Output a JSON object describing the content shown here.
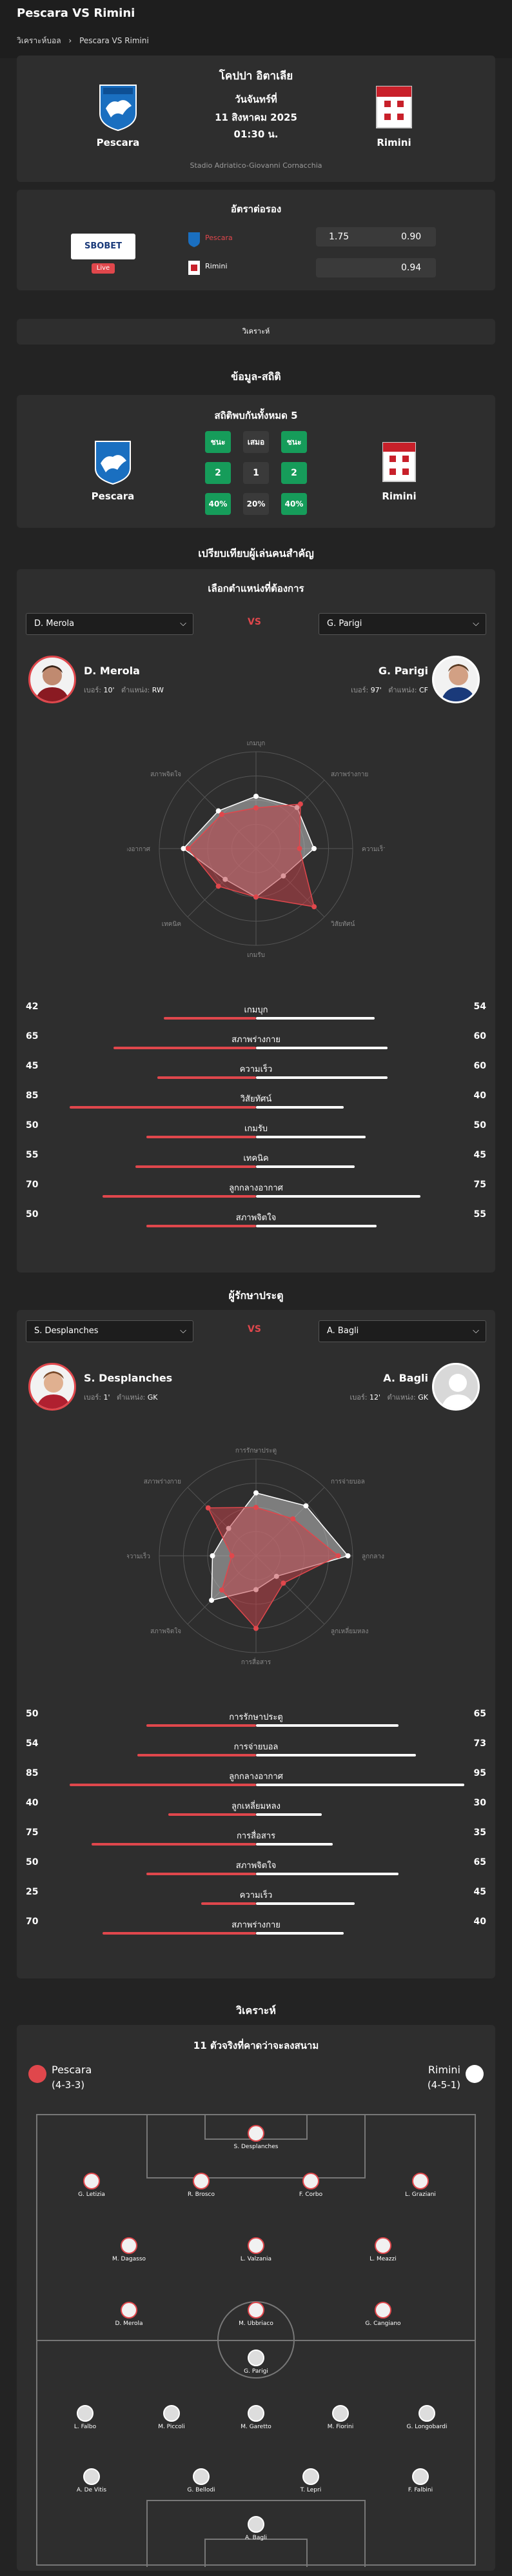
{
  "page": {
    "title": "Pescara VS Rimini",
    "breadcrumb": [
      "วิเคราะห์บอล",
      "›",
      "Pescara VS Rimini"
    ]
  },
  "match": {
    "competition": "โคปปา อิตาเลีย",
    "day": "วันจันทร์ที่",
    "date": "11 สิงหาคม 2025",
    "time": "01:30 น.",
    "venue": "Stadio Adriatico-Giovanni Cornacchia",
    "home": "Pescara",
    "away": "Rimini"
  },
  "odds": {
    "title": "อัตราต่อรอง",
    "bookmaker": "SBOBET",
    "live": "Live",
    "home_name": "Pescara",
    "away_name": "Rimini",
    "home_line": "1.75",
    "home_price": "0.90",
    "away_price": "0.94",
    "analysis_label": "วิเคราะห์"
  },
  "stats": {
    "section_title": "ข้อมูล-สถิติ",
    "h2h_title": "สถิติพบกันทั้งหมด 5",
    "labels": [
      "ชนะ",
      "เสมอ",
      "ชนะ"
    ],
    "counts": [
      "2",
      "1",
      "2"
    ],
    "percents": [
      "40%",
      "20%",
      "40%"
    ],
    "home": "Pescara",
    "away": "Rimini"
  },
  "compare": {
    "section_title": "เปรียบเทียบผู้เล่นคนสำคัญ",
    "forward_title": "เลือกตำแหน่งที่ต้องการ",
    "vs": "VS",
    "fw_home": {
      "select": "D. Merola",
      "name": "D. Merola",
      "number_label": "เบอร์:",
      "number": "10'",
      "pos_label": "ตำแหน่ง:",
      "pos": "RW"
    },
    "fw_away": {
      "select": "G. Parigi",
      "name": "G. Parigi",
      "number_label": "เบอร์:",
      "number": "97'",
      "pos_label": "ตำแหน่ง:",
      "pos": "CF"
    },
    "fw_axes": [
      "เกมบุก",
      "สภาพร่างกาย",
      "ความเร็ว",
      "วิสัยทัศน์",
      "เกมรับ",
      "เทคนิค",
      "ลูกกลางอากาศ",
      "สภาพจิตใจ"
    ],
    "fw_stats": [
      {
        "name": "เกมบุก",
        "home": 42,
        "away": 54
      },
      {
        "name": "สภาพร่างกาย",
        "home": 65,
        "away": 60
      },
      {
        "name": "ความเร็ว",
        "home": 45,
        "away": 60
      },
      {
        "name": "วิสัยทัศน์",
        "home": 85,
        "away": 40
      },
      {
        "name": "เกมรับ",
        "home": 50,
        "away": 50
      },
      {
        "name": "เทคนิค",
        "home": 55,
        "away": 45
      },
      {
        "name": "ลูกกลางอากาศ",
        "home": 70,
        "away": 75
      },
      {
        "name": "สภาพจิตใจ",
        "home": 50,
        "away": 55
      }
    ],
    "gk_title": "ผู้รักษาประตู",
    "gk_home": {
      "select": "S. Desplanches",
      "name": "S. Desplanches",
      "number_label": "เบอร์:",
      "number": "1'",
      "pos_label": "ตำแหน่ง:",
      "pos": "GK"
    },
    "gk_away": {
      "select": "A. Bagli",
      "name": "A. Bagli",
      "number_label": "เบอร์:",
      "number": "12'",
      "pos_label": "ตำแหน่ง:",
      "pos": "GK"
    },
    "gk_axes": [
      "การรักษาประตู",
      "การจ่ายบอล",
      "ลูกกลางอากาศ",
      "ลูกเหลี่ยมหลง",
      "การสื่อสาร",
      "สภาพจิตใจ",
      "ความเร็ว",
      "สภาพร่างกาย"
    ],
    "gk_stats": [
      {
        "name": "การรักษาประตู",
        "home": 50,
        "away": 65
      },
      {
        "name": "การจ่ายบอล",
        "home": 54,
        "away": 73
      },
      {
        "name": "ลูกกลางอากาศ",
        "home": 85,
        "away": 95
      },
      {
        "name": "ลูกเหลี่ยมหลง",
        "home": 40,
        "away": 30
      },
      {
        "name": "การสื่อสาร",
        "home": 75,
        "away": 35
      },
      {
        "name": "สภาพจิตใจ",
        "home": 50,
        "away": 65
      },
      {
        "name": "ความเร็ว",
        "home": 25,
        "away": 45
      },
      {
        "name": "สภาพร่างกาย",
        "home": 70,
        "away": 40
      }
    ]
  },
  "lineup": {
    "section_title": "วิเคราะห์",
    "title": "11 ตัวจริงที่คาดว่าจะลงสนาม",
    "home": "Pescara",
    "home_form": "(4-3-3)",
    "away": "Rimini",
    "away_form": "(4-5-1)",
    "home_players": [
      "S. Desplanches",
      "G. Letizia",
      "R. Brosco",
      "F. Corbo",
      "L. Graziani",
      "M. Dagasso",
      "L. Valzania",
      "L. Meazzi",
      "D. Merola",
      "M. Ubbriaco",
      "G. Cangiano"
    ],
    "away_players": [
      "G. Parigi",
      "L. Falbo",
      "M. Piccoli",
      "M. Garetto",
      "M. Fiorini",
      "G. Longobardi",
      "A. De Vitis",
      "G. Bellodi",
      "T. Lepri",
      "F. Falbini",
      "A. Bagli"
    ]
  },
  "colors": {
    "accent": "#e0474c",
    "green": "#169c5a",
    "card": "#2e2e2e",
    "bg": "#232323"
  }
}
